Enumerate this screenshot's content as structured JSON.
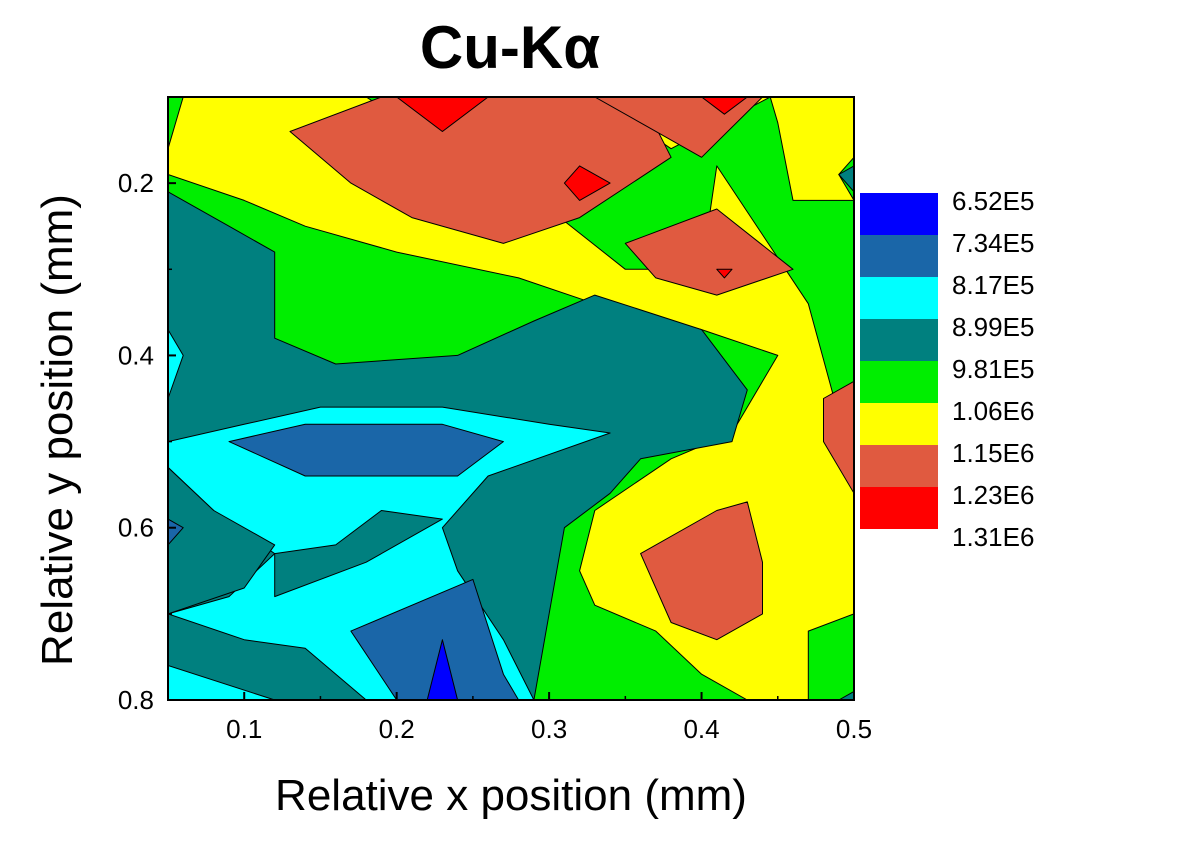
{
  "chart_data": {
    "type": "heatmap",
    "subtype": "filled-contour",
    "title": "Cu-Kα",
    "xlabel": "Relative x position (mm)",
    "ylabel": "Relative y position (mm)",
    "xlim": [
      0.05,
      0.5
    ],
    "ylim": [
      0.1,
      0.8
    ],
    "y_axis_inverted": true,
    "x_ticks": [
      "0.1",
      "0.2",
      "0.3",
      "0.4",
      "0.5"
    ],
    "x_tick_values": [
      0.1,
      0.2,
      0.3,
      0.4,
      0.5
    ],
    "y_ticks": [
      "0.2",
      "0.4",
      "0.6",
      "0.8"
    ],
    "y_tick_values": [
      0.2,
      0.4,
      0.6,
      0.8
    ],
    "grid": false,
    "legend_placement": "right",
    "levels": [
      {
        "label": "6.52E5",
        "value": 652000,
        "color": "#0000ff"
      },
      {
        "label": "7.34E5",
        "value": 734000,
        "color": "#1a66a8"
      },
      {
        "label": "8.17E5",
        "value": 817000,
        "color": "#00ffff"
      },
      {
        "label": "8.99E5",
        "value": 899000,
        "color": "#00807f"
      },
      {
        "label": "9.81E5",
        "value": 981000,
        "color": "#00ee00"
      },
      {
        "label": "1.06E6",
        "value": 1060000,
        "color": "#ffff00"
      },
      {
        "label": "1.15E6",
        "value": 1150000,
        "color": "#e05a40"
      },
      {
        "label": "1.23E6",
        "value": 1230000,
        "color": "#ff0000"
      },
      {
        "label": "1.31E6",
        "value": 1310000,
        "color": "#ff0000"
      }
    ],
    "regions": [
      {
        "level": 4,
        "points": [
          [
            0.05,
            0.1
          ],
          [
            0.5,
            0.1
          ],
          [
            0.5,
            0.8
          ],
          [
            0.05,
            0.8
          ]
        ]
      },
      {
        "level": 5,
        "points": [
          [
            0.05,
            0.16
          ],
          [
            0.06,
            0.1
          ],
          [
            0.5,
            0.1
          ],
          [
            0.5,
            0.22
          ],
          [
            0.46,
            0.22
          ],
          [
            0.45,
            0.13
          ],
          [
            0.445,
            0.1
          ],
          [
            0.38,
            0.16
          ],
          [
            0.33,
            0.1
          ],
          [
            0.18,
            0.1
          ],
          [
            0.25,
            0.18
          ],
          [
            0.3,
            0.23
          ],
          [
            0.35,
            0.3
          ],
          [
            0.4,
            0.3
          ],
          [
            0.41,
            0.18
          ],
          [
            0.47,
            0.34
          ],
          [
            0.49,
            0.47
          ],
          [
            0.5,
            0.48
          ],
          [
            0.5,
            0.7
          ],
          [
            0.47,
            0.72
          ],
          [
            0.47,
            0.8
          ],
          [
            0.43,
            0.8
          ],
          [
            0.4,
            0.77
          ],
          [
            0.37,
            0.72
          ],
          [
            0.33,
            0.69
          ],
          [
            0.32,
            0.65
          ],
          [
            0.33,
            0.58
          ],
          [
            0.38,
            0.52
          ],
          [
            0.42,
            0.49
          ],
          [
            0.43,
            0.46
          ],
          [
            0.45,
            0.4
          ],
          [
            0.4,
            0.37
          ],
          [
            0.33,
            0.34
          ],
          [
            0.28,
            0.31
          ],
          [
            0.2,
            0.28
          ],
          [
            0.14,
            0.25
          ],
          [
            0.1,
            0.22
          ],
          [
            0.05,
            0.19
          ]
        ]
      },
      {
        "level": 6,
        "points": [
          [
            0.19,
            0.1
          ],
          [
            0.36,
            0.1
          ],
          [
            0.38,
            0.17
          ],
          [
            0.32,
            0.24
          ],
          [
            0.27,
            0.27
          ],
          [
            0.21,
            0.24
          ],
          [
            0.17,
            0.2
          ],
          [
            0.13,
            0.14
          ]
        ]
      },
      {
        "level": 6,
        "points": [
          [
            0.33,
            0.1
          ],
          [
            0.44,
            0.1
          ],
          [
            0.4,
            0.17
          ],
          [
            0.36,
            0.13
          ]
        ]
      },
      {
        "level": 6,
        "points": [
          [
            0.35,
            0.27
          ],
          [
            0.41,
            0.23
          ],
          [
            0.46,
            0.3
          ],
          [
            0.41,
            0.33
          ],
          [
            0.37,
            0.31
          ]
        ]
      },
      {
        "level": 6,
        "points": [
          [
            0.48,
            0.45
          ],
          [
            0.5,
            0.43
          ],
          [
            0.5,
            0.56
          ],
          [
            0.48,
            0.5
          ]
        ]
      },
      {
        "level": 6,
        "points": [
          [
            0.36,
            0.63
          ],
          [
            0.41,
            0.58
          ],
          [
            0.43,
            0.57
          ],
          [
            0.44,
            0.64
          ],
          [
            0.44,
            0.7
          ],
          [
            0.41,
            0.73
          ],
          [
            0.38,
            0.71
          ]
        ]
      },
      {
        "level": 7,
        "points": [
          [
            0.2,
            0.1
          ],
          [
            0.26,
            0.1
          ],
          [
            0.23,
            0.14
          ]
        ]
      },
      {
        "level": 7,
        "points": [
          [
            0.4,
            0.1
          ],
          [
            0.43,
            0.1
          ],
          [
            0.415,
            0.12
          ]
        ]
      },
      {
        "level": 7,
        "points": [
          [
            0.31,
            0.2
          ],
          [
            0.32,
            0.18
          ],
          [
            0.34,
            0.2
          ],
          [
            0.32,
            0.22
          ]
        ]
      },
      {
        "level": 3,
        "points": [
          [
            0.05,
            0.21
          ],
          [
            0.09,
            0.25
          ],
          [
            0.12,
            0.28
          ],
          [
            0.12,
            0.38
          ],
          [
            0.16,
            0.41
          ],
          [
            0.24,
            0.4
          ],
          [
            0.29,
            0.36
          ],
          [
            0.33,
            0.33
          ],
          [
            0.4,
            0.37
          ],
          [
            0.43,
            0.44
          ],
          [
            0.42,
            0.5
          ],
          [
            0.36,
            0.52
          ],
          [
            0.34,
            0.56
          ],
          [
            0.31,
            0.6
          ],
          [
            0.3,
            0.7
          ],
          [
            0.29,
            0.8
          ],
          [
            0.05,
            0.8
          ]
        ]
      },
      {
        "level": 2,
        "points": [
          [
            0.05,
            0.37
          ],
          [
            0.06,
            0.4
          ],
          [
            0.05,
            0.45
          ],
          [
            0.05,
            0.5
          ],
          [
            0.1,
            0.48
          ],
          [
            0.15,
            0.46
          ],
          [
            0.23,
            0.46
          ],
          [
            0.3,
            0.48
          ],
          [
            0.34,
            0.49
          ],
          [
            0.26,
            0.54
          ],
          [
            0.23,
            0.6
          ],
          [
            0.24,
            0.65
          ],
          [
            0.27,
            0.73
          ],
          [
            0.29,
            0.8
          ],
          [
            0.05,
            0.8
          ],
          [
            0.05,
            0.7
          ],
          [
            0.09,
            0.68
          ],
          [
            0.12,
            0.63
          ],
          [
            0.08,
            0.58
          ],
          [
            0.05,
            0.53
          ]
        ]
      },
      {
        "level": 3,
        "points": [
          [
            0.05,
            0.53
          ],
          [
            0.08,
            0.58
          ],
          [
            0.12,
            0.62
          ],
          [
            0.1,
            0.67
          ],
          [
            0.05,
            0.7
          ]
        ]
      },
      {
        "level": 3,
        "points": [
          [
            0.12,
            0.63
          ],
          [
            0.16,
            0.62
          ],
          [
            0.19,
            0.58
          ],
          [
            0.23,
            0.59
          ],
          [
            0.18,
            0.64
          ],
          [
            0.12,
            0.68
          ]
        ]
      },
      {
        "level": 3,
        "points": [
          [
            0.05,
            0.7
          ],
          [
            0.1,
            0.73
          ],
          [
            0.14,
            0.74
          ],
          [
            0.18,
            0.8
          ],
          [
            0.12,
            0.8
          ],
          [
            0.05,
            0.76
          ]
        ]
      },
      {
        "level": 1,
        "points": [
          [
            0.09,
            0.5
          ],
          [
            0.14,
            0.48
          ],
          [
            0.23,
            0.48
          ],
          [
            0.27,
            0.5
          ],
          [
            0.24,
            0.54
          ],
          [
            0.14,
            0.54
          ]
        ]
      },
      {
        "level": 1,
        "points": [
          [
            0.05,
            0.59
          ],
          [
            0.06,
            0.6
          ],
          [
            0.05,
            0.62
          ]
        ]
      },
      {
        "level": 1,
        "points": [
          [
            0.17,
            0.72
          ],
          [
            0.25,
            0.66
          ],
          [
            0.27,
            0.77
          ],
          [
            0.28,
            0.8
          ],
          [
            0.2,
            0.8
          ]
        ]
      },
      {
        "level": 0,
        "points": [
          [
            0.22,
            0.8
          ],
          [
            0.23,
            0.73
          ],
          [
            0.24,
            0.8
          ]
        ]
      },
      {
        "level": 4,
        "points": [
          [
            0.5,
            0.17
          ],
          [
            0.5,
            0.22
          ],
          [
            0.49,
            0.19
          ]
        ]
      },
      {
        "level": 3,
        "points": [
          [
            0.5,
            0.18
          ],
          [
            0.5,
            0.21
          ],
          [
            0.49,
            0.19
          ]
        ]
      },
      {
        "level": 3,
        "points": [
          [
            0.5,
            0.79
          ],
          [
            0.5,
            0.8
          ],
          [
            0.49,
            0.8
          ]
        ]
      },
      {
        "level": 7,
        "points": [
          [
            0.41,
            0.3
          ],
          [
            0.42,
            0.3
          ],
          [
            0.415,
            0.31
          ]
        ]
      }
    ]
  }
}
